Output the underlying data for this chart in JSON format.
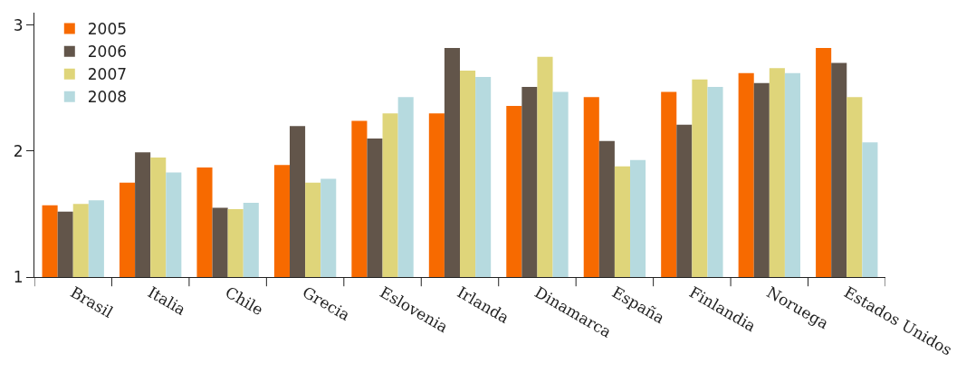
{
  "chart_data": {
    "type": "bar",
    "categories": [
      "Brasil",
      "Italia",
      "Chile",
      "Grecia",
      "Eslovenia",
      "Irlanda",
      "Dinamarca",
      "España",
      "Finlandia",
      "Noruega",
      "Estados Unidos"
    ],
    "series": [
      {
        "name": "2005",
        "color": "#f76a00",
        "values": [
          1.57,
          1.75,
          1.87,
          1.89,
          2.24,
          2.3,
          2.36,
          2.43,
          2.47,
          2.62,
          2.82
        ]
      },
      {
        "name": "2006",
        "color": "#62554a",
        "values": [
          1.52,
          1.99,
          1.55,
          2.2,
          2.1,
          2.82,
          2.51,
          2.08,
          2.21,
          2.54,
          2.7
        ]
      },
      {
        "name": "2007",
        "color": "#dfd57a",
        "values": [
          1.58,
          1.95,
          1.54,
          1.75,
          2.3,
          2.64,
          2.75,
          1.88,
          2.57,
          2.66,
          2.43
        ]
      },
      {
        "name": "2008",
        "color": "#b6dadf",
        "values": [
          1.61,
          1.83,
          1.59,
          1.78,
          2.43,
          2.59,
          2.47,
          1.93,
          2.51,
          2.62,
          2.07
        ]
      }
    ],
    "ylim": [
      1,
      3.1
    ],
    "yticks": [
      1,
      2,
      3
    ],
    "legend": "top left"
  }
}
